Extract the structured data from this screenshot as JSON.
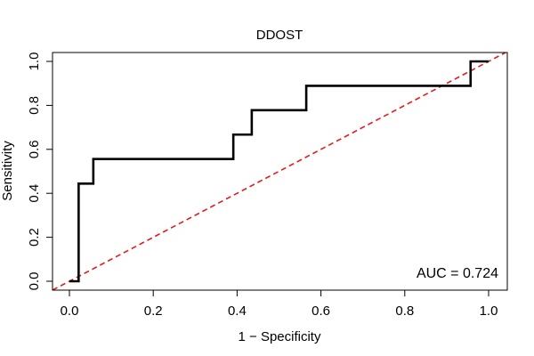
{
  "chart_data": {
    "type": "line",
    "title": "DDOST",
    "xlabel": "1 − Specificity",
    "ylabel": "Sensitivity",
    "xlim": [
      0,
      1
    ],
    "ylim": [
      0,
      1
    ],
    "x_ticks": [
      0.0,
      0.2,
      0.4,
      0.6,
      0.8,
      1.0
    ],
    "x_tick_labels": [
      "0.0",
      "0.2",
      "0.4",
      "0.6",
      "0.8",
      "1.0"
    ],
    "y_ticks": [
      0.0,
      0.2,
      0.4,
      0.6,
      0.8,
      1.0
    ],
    "y_tick_labels": [
      "0.0",
      "0.2",
      "0.4",
      "0.6",
      "0.8",
      "1.0"
    ],
    "grid": false,
    "annotation": "AUC = 0.724",
    "annotation_placement": "bottom-right",
    "series": [
      {
        "name": "ROC curve",
        "style": "solid",
        "color": "#000000",
        "x": [
          0.0,
          0.022,
          0.022,
          0.057,
          0.057,
          0.391,
          0.391,
          0.435,
          0.435,
          0.565,
          0.565,
          0.957,
          0.957,
          1.0
        ],
        "y": [
          0.0,
          0.0,
          0.444,
          0.444,
          0.556,
          0.556,
          0.667,
          0.667,
          0.778,
          0.778,
          0.889,
          0.889,
          1.0,
          1.0
        ]
      },
      {
        "name": "Reference line",
        "style": "dashed",
        "color": "#e41a1c",
        "x": [
          -0.04,
          1.04
        ],
        "y": [
          -0.04,
          1.04
        ]
      }
    ]
  }
}
